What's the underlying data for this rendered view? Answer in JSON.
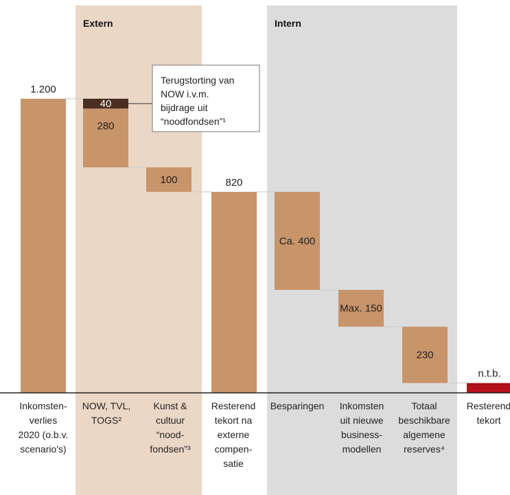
{
  "colors": {
    "bar": "#C8946A",
    "dark": "#4A2E22",
    "red": "#B5121B",
    "extern_bg": "#EBD7C6",
    "intern_bg": "#DCDCDC",
    "connector": "#CFCFCF",
    "axis": "#222222"
  },
  "chart_data": {
    "type": "waterfall",
    "title": "",
    "ylim": [
      0,
      1200
    ],
    "groups": [
      {
        "label": "Extern",
        "from_category": 1,
        "to_category": 3
      },
      {
        "label": "Intern",
        "from_category": 4,
        "to_category": 7
      }
    ],
    "categories": [
      {
        "lines": [
          "Inkomsten-",
          "verlies",
          "2020 (o.b.v.",
          "scenario's)"
        ]
      },
      {
        "lines": [
          "NOW, TVL,",
          "TOGS²"
        ]
      },
      {
        "lines": [
          "Kunst &",
          "cultuur",
          "“nood-",
          "fondsen”³"
        ]
      },
      {
        "lines": [
          "Resterend",
          "tekort na",
          "externe",
          "compen-",
          "satie"
        ]
      },
      {
        "lines": [
          "Besparingen"
        ]
      },
      {
        "lines": [
          "Inkomsten",
          "uit nieuwe",
          "business-",
          "modellen"
        ]
      },
      {
        "lines": [
          "Totaal",
          "beschikbare",
          "algemene",
          "reserves⁴"
        ]
      },
      {
        "lines": [
          "Resterend",
          "tekort"
        ]
      }
    ],
    "bars": [
      {
        "segments": [
          {
            "from": 0,
            "to": 1200,
            "color": "bar"
          }
        ],
        "label": "1.200",
        "label_pos": "above"
      },
      {
        "segments": [
          {
            "from": 920,
            "to": 1160,
            "color": "bar"
          },
          {
            "from": 1160,
            "to": 1200,
            "color": "dark"
          }
        ],
        "label": "280",
        "label_pos": "inside",
        "sublabel": "40"
      },
      {
        "segments": [
          {
            "from": 820,
            "to": 920,
            "color": "bar"
          }
        ],
        "label": "100",
        "label_pos": "inside"
      },
      {
        "segments": [
          {
            "from": 0,
            "to": 820,
            "color": "bar"
          }
        ],
        "label": "820",
        "label_pos": "above"
      },
      {
        "segments": [
          {
            "from": 420,
            "to": 820,
            "color": "bar"
          }
        ],
        "label": "Ca. 400",
        "label_pos": "inside"
      },
      {
        "segments": [
          {
            "from": 270,
            "to": 420,
            "color": "bar"
          }
        ],
        "label": "Max. 150",
        "label_pos": "inside"
      },
      {
        "segments": [
          {
            "from": 40,
            "to": 270,
            "color": "bar"
          }
        ],
        "label": "230",
        "label_pos": "inside"
      },
      {
        "segments": [
          {
            "from": 0,
            "to": 40,
            "color": "red"
          }
        ],
        "label": "n.t.b.",
        "label_pos": "above"
      }
    ],
    "annotation": {
      "lines": [
        "Terugstorting van",
        "NOW i.v.m.",
        "bijdrage uit",
        "“noodfondsen”¹"
      ]
    }
  }
}
